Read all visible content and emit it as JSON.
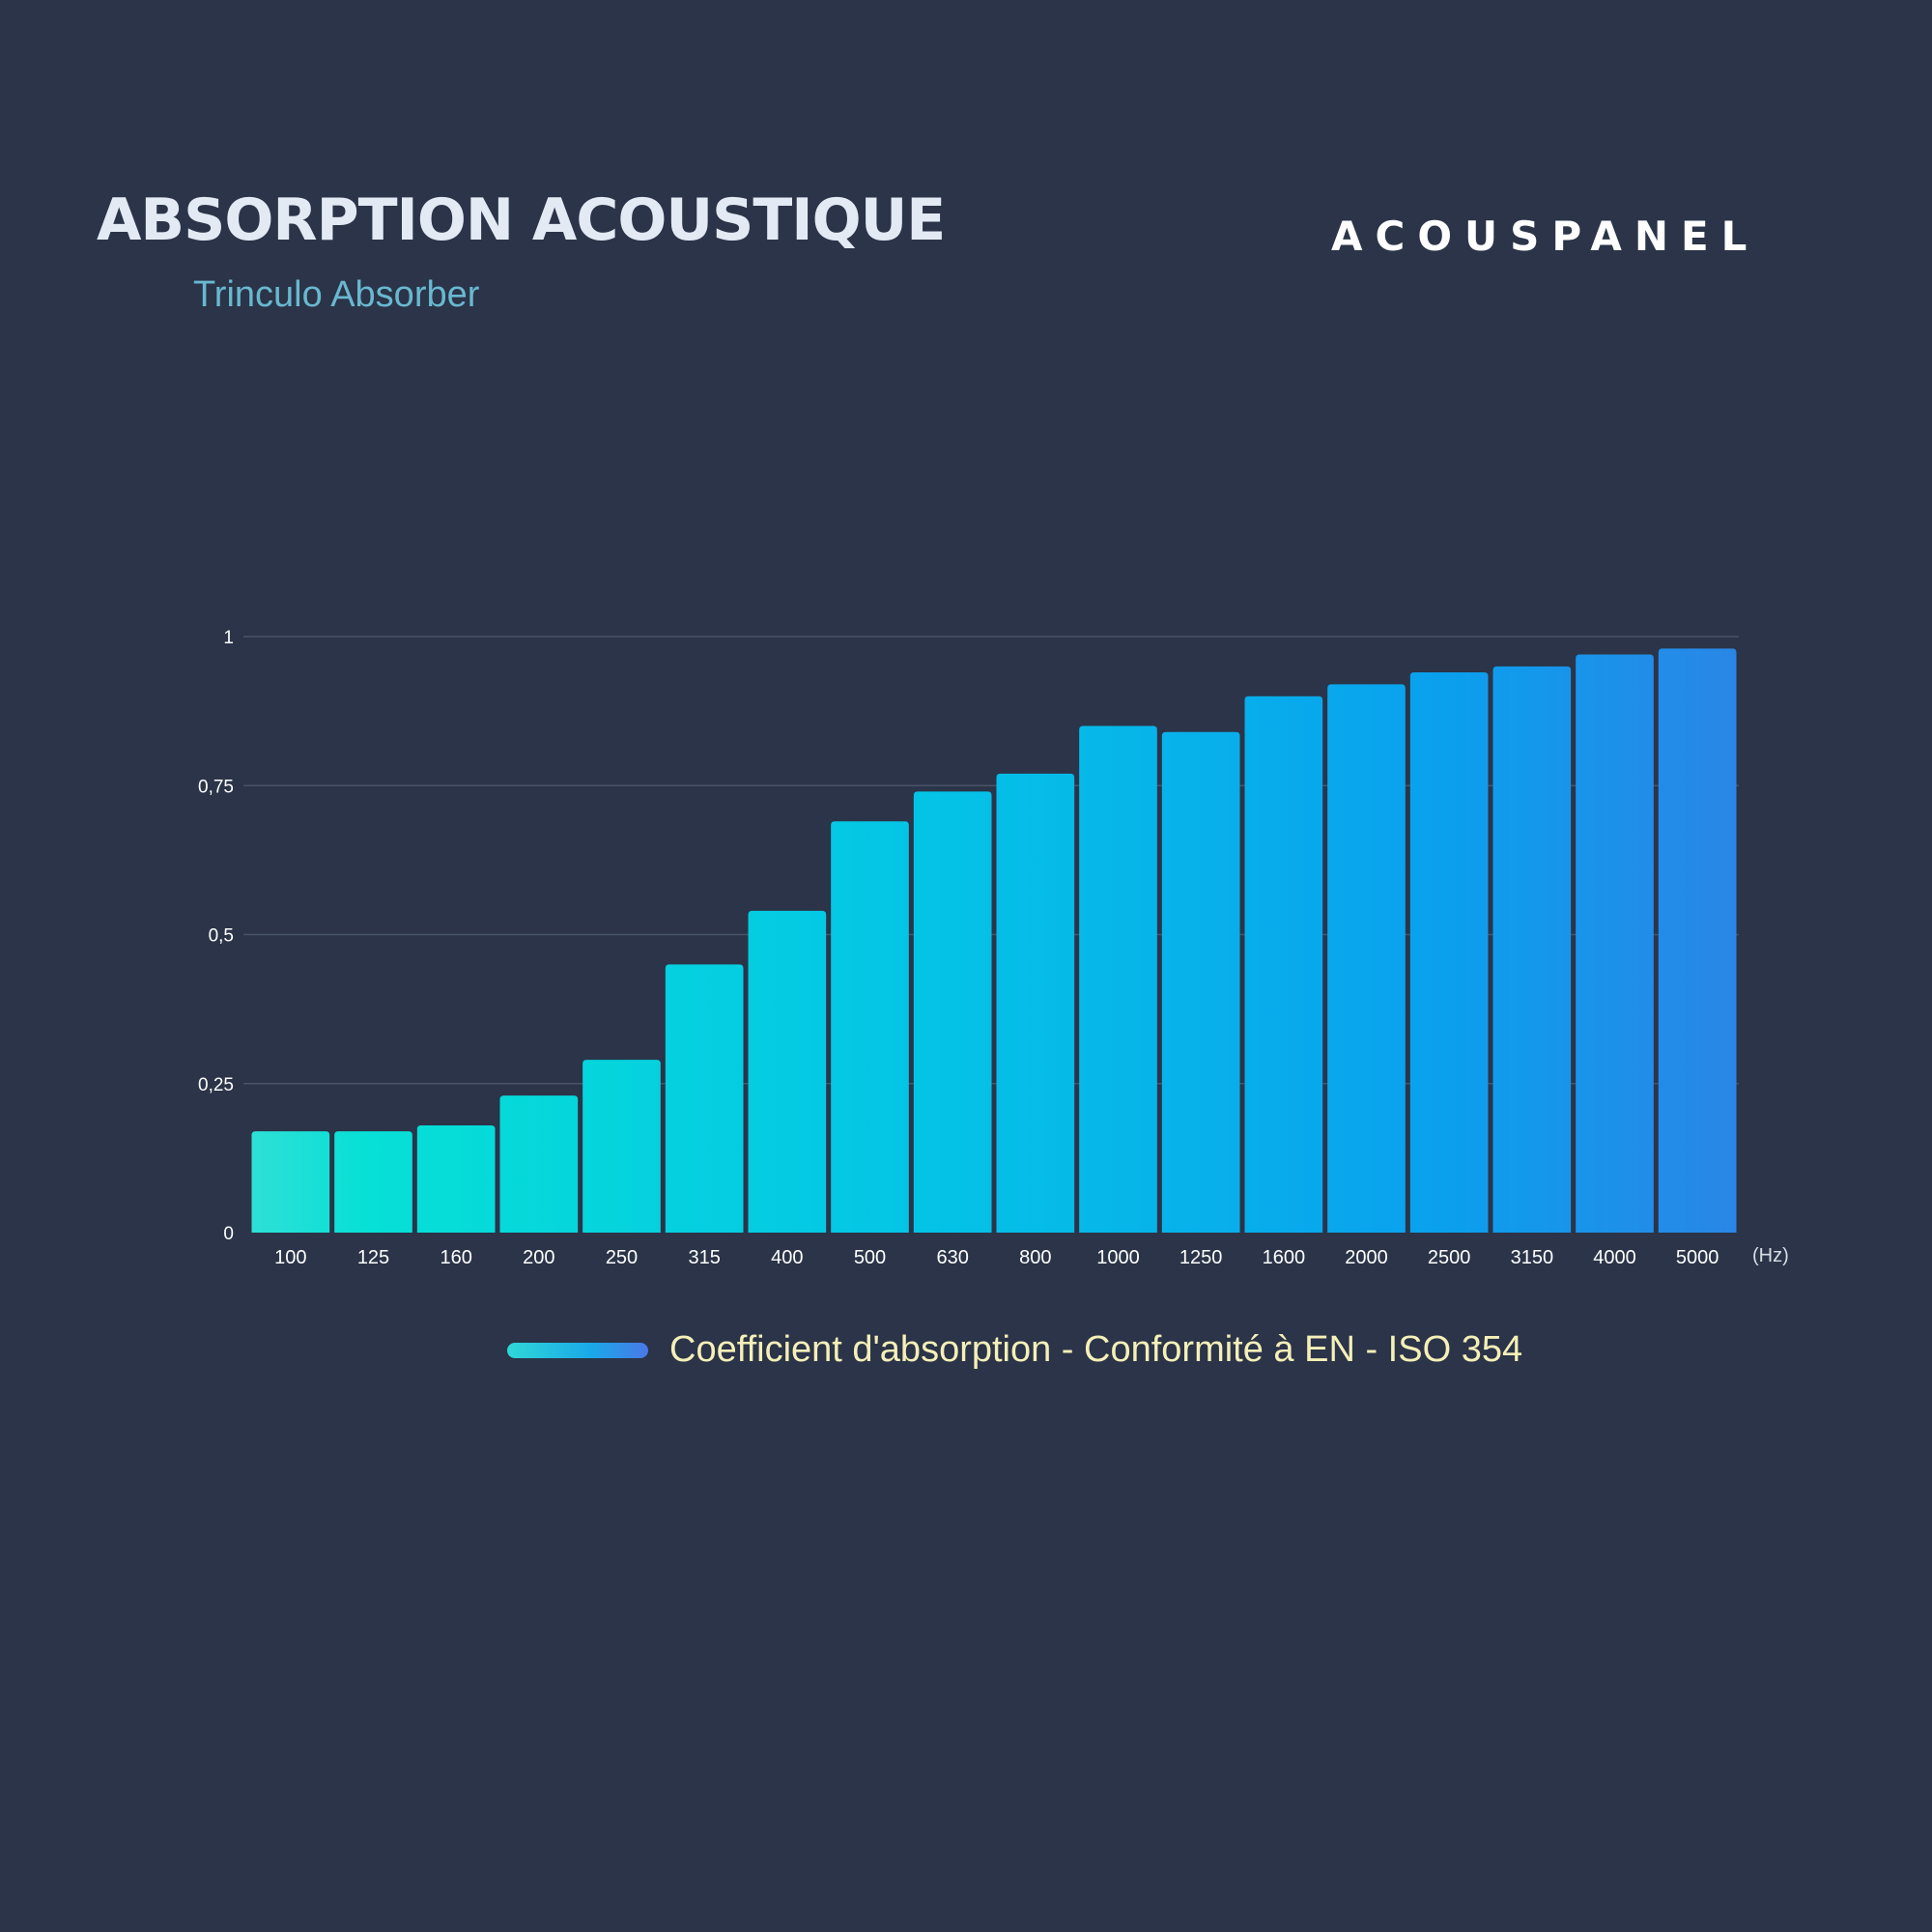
{
  "header": {
    "title": "ABSORPTION ACOUSTIQUE",
    "subtitle": "Trinculo Absorber",
    "brand": "ACOUSPANEL"
  },
  "colors": {
    "background": "#2b3448",
    "bar_start": "#2fe0d6",
    "bar_end": "#2a86e6",
    "grid": "#4a5468",
    "tick_text": "#ffffff",
    "legend_text": "#f5f0b8"
  },
  "chart_data": {
    "type": "bar",
    "categories": [
      "100",
      "125",
      "160",
      "200",
      "250",
      "315",
      "400",
      "500",
      "630",
      "800",
      "1000",
      "1250",
      "1600",
      "2000",
      "2500",
      "3150",
      "4000",
      "5000"
    ],
    "series": [
      {
        "name": "Coefficient d'absorption - Conformité à EN - ISO 354",
        "values": [
          0.17,
          0.17,
          0.18,
          0.23,
          0.29,
          0.45,
          0.54,
          0.69,
          0.74,
          0.77,
          0.85,
          0.84,
          0.9,
          0.92,
          0.94,
          0.95,
          0.97,
          0.98
        ]
      }
    ],
    "ylim": [
      0,
      1
    ],
    "yticks": [
      0,
      0.25,
      0.5,
      0.75,
      1
    ],
    "ytick_labels": [
      "0",
      "0,25",
      "0,5",
      "0,75",
      "1"
    ],
    "x_unit": "(Hz)",
    "grid": true,
    "legend_position": "bottom"
  }
}
